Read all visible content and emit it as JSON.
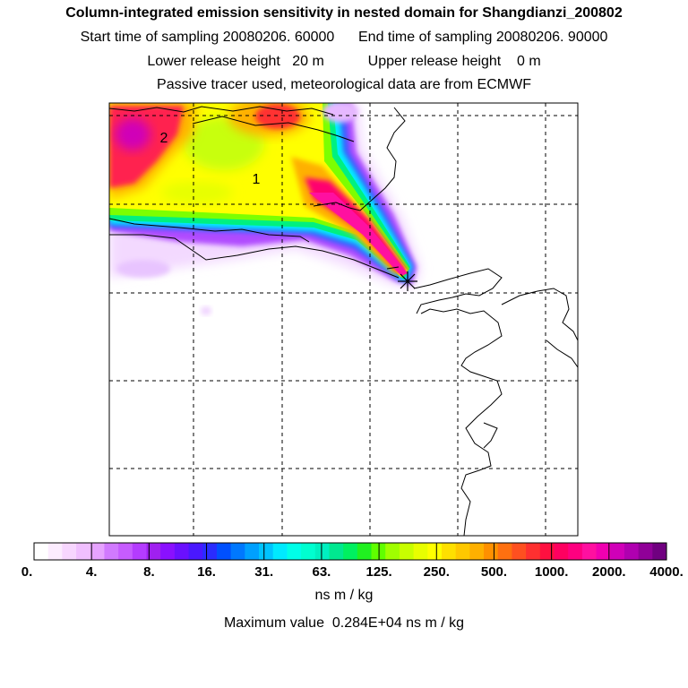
{
  "header": {
    "title": "Column-integrated emission sensitivity in nested domain for Shangdianzi_200802",
    "line2": "Start time of sampling 20080206. 60000      End time of sampling 20080206. 90000",
    "line3": "Lower release height   20 m           Upper release height    0 m",
    "line4": "Passive tracer used, meteorological data are from ECMWF"
  },
  "map": {
    "region_labels": [
      "2",
      "1"
    ],
    "release_site_marker": "asterisk-marker"
  },
  "colorbar": {
    "tick_labels": [
      "0.",
      "4.",
      "8.",
      "16.",
      "31.",
      "63.",
      "125.",
      "250.",
      "500.",
      "1000.",
      "2000.",
      "4000."
    ],
    "colors": [
      "#ffffff",
      "#fcecff",
      "#f7d6ff",
      "#f0bfff",
      "#e6a3ff",
      "#d17aff",
      "#c65cff",
      "#b43cff",
      "#a020f0",
      "#8a10ff",
      "#6a10ff",
      "#4a18ff",
      "#2a2cff",
      "#0050ff",
      "#0078ff",
      "#00a0ff",
      "#00c4ff",
      "#00eaff",
      "#00ffe8",
      "#00ffd0",
      "#00f0c0",
      "#00e890",
      "#00f060",
      "#20f020",
      "#60ff00",
      "#a0ff00",
      "#c8ff00",
      "#e8ff00",
      "#ffff00",
      "#ffe000",
      "#ffc800",
      "#ffb000",
      "#ff9000",
      "#ff7010",
      "#ff5020",
      "#ff3030",
      "#ff1040",
      "#ff0060",
      "#ff0080",
      "#ff10a0",
      "#f000b0",
      "#d000b8",
      "#b000b0",
      "#900098",
      "#700080"
    ],
    "units": "ns m / kg"
  },
  "footer": {
    "max_value": "Maximum value  0.284E+04 ns m / kg"
  }
}
